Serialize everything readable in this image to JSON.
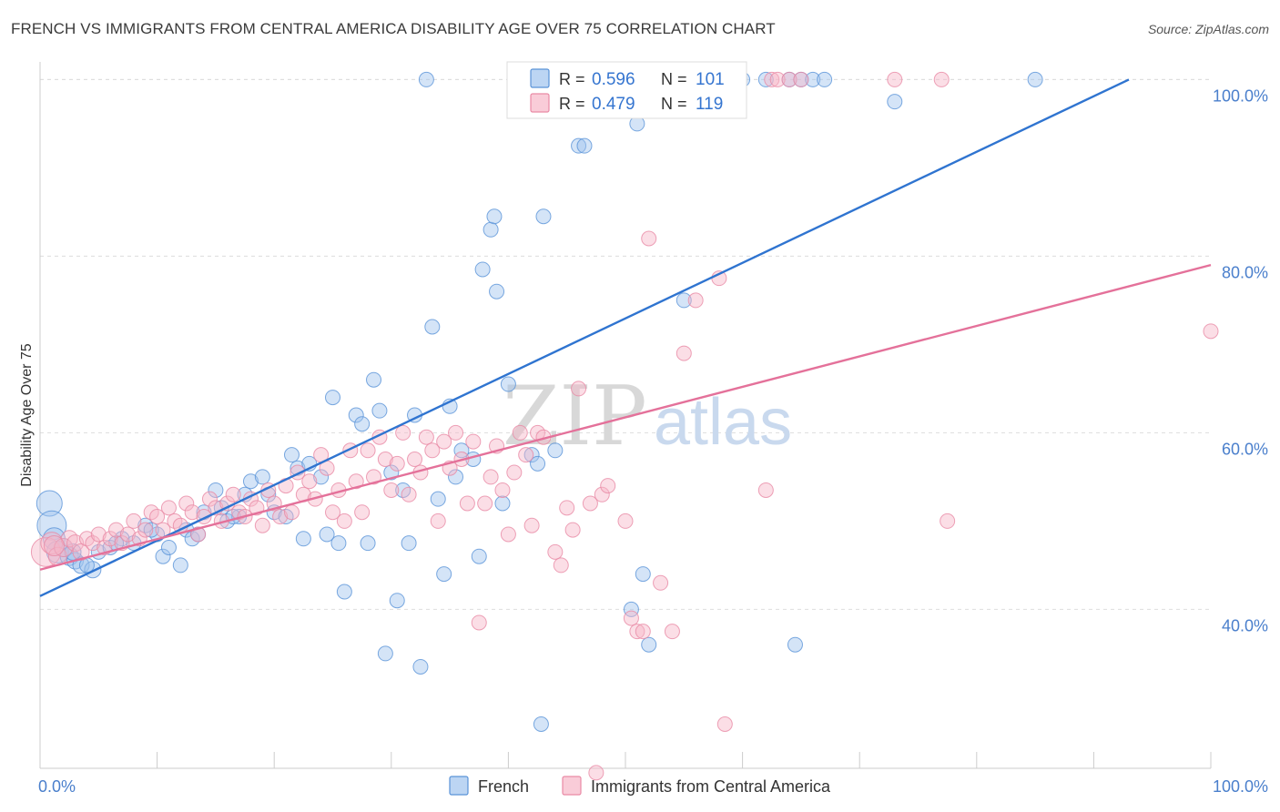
{
  "header": {
    "title": "FRENCH VS IMMIGRANTS FROM CENTRAL AMERICA DISABILITY AGE OVER 75 CORRELATION CHART",
    "source": "Source: ZipAtlas.com"
  },
  "watermark": {
    "zip": "ZIP",
    "atlas": "atlas"
  },
  "legend_box": {
    "rows": [
      {
        "r_label": "R = ",
        "r_value": "0.596",
        "n_label": "N = ",
        "n_value": "101",
        "color": "#9fc3ee"
      },
      {
        "r_label": "R = ",
        "r_value": "0.479",
        "n_label": "N = ",
        "n_value": "119",
        "color": "#f7b6c8"
      }
    ]
  },
  "chart_data": {
    "type": "scatter",
    "title": "FRENCH VS IMMIGRANTS FROM CENTRAL AMERICA DISABILITY AGE OVER 75 CORRELATION CHART",
    "xlabel": "",
    "ylabel": "Disability Age Over 75",
    "xlim": [
      0,
      100
    ],
    "ylim": [
      22,
      102
    ],
    "x_tick_labels": [
      {
        "value": 0,
        "label": "0.0%"
      },
      {
        "value": 100,
        "label": "100.0%"
      }
    ],
    "y_tick_labels": [
      {
        "value": 40,
        "label": "40.0%"
      },
      {
        "value": 60,
        "label": "60.0%"
      },
      {
        "value": 80,
        "label": "80.0%"
      },
      {
        "value": 100,
        "label": "100.0%"
      }
    ],
    "grid": true,
    "legend_position": "bottom",
    "series": [
      {
        "name": "French",
        "color": "#9fc3ee",
        "stroke": "#5a93d8",
        "trend_color": "#2f74d0",
        "trend": {
          "x": [
            0,
            93
          ],
          "y": [
            41.5,
            100
          ]
        },
        "points": [
          [
            0.8,
            52,
            14
          ],
          [
            1.0,
            49.5,
            16
          ],
          [
            1.2,
            48,
            12
          ],
          [
            1.5,
            46.5,
            12
          ],
          [
            2.0,
            47,
            10
          ],
          [
            2.5,
            46,
            10
          ],
          [
            3,
            45.5,
            9
          ],
          [
            3.5,
            45,
            9
          ],
          [
            4.5,
            44.5,
            9
          ],
          [
            5,
            46.5,
            8
          ],
          [
            6,
            47,
            8
          ],
          [
            7,
            48,
            8
          ],
          [
            8,
            47.5,
            8
          ],
          [
            9,
            49.5,
            8
          ],
          [
            10,
            48.5,
            8
          ],
          [
            10.5,
            46,
            8
          ],
          [
            12,
            45,
            8
          ],
          [
            12.5,
            49,
            8
          ],
          [
            13,
            48,
            8
          ],
          [
            14,
            51,
            8
          ],
          [
            15,
            53.5,
            8
          ],
          [
            15.5,
            51.5,
            8
          ],
          [
            16,
            50,
            8
          ],
          [
            17,
            50.5,
            8
          ],
          [
            17.5,
            53,
            8
          ],
          [
            18,
            54.5,
            8
          ],
          [
            19,
            55,
            8
          ],
          [
            19.5,
            53,
            8
          ],
          [
            20,
            51,
            8
          ],
          [
            21,
            50.5,
            8
          ],
          [
            21.5,
            57.5,
            8
          ],
          [
            22,
            56,
            8
          ],
          [
            22.5,
            48,
            8
          ],
          [
            23,
            56.5,
            8
          ],
          [
            24,
            55,
            8
          ],
          [
            24.5,
            48.5,
            8
          ],
          [
            25,
            64,
            8
          ],
          [
            25.5,
            47.5,
            8
          ],
          [
            26,
            42,
            8
          ],
          [
            27,
            62,
            8
          ],
          [
            27.5,
            61,
            8
          ],
          [
            28,
            47.5,
            8
          ],
          [
            28.5,
            66,
            8
          ],
          [
            29,
            62.5,
            8
          ],
          [
            29.5,
            35,
            8
          ],
          [
            30,
            55.5,
            8
          ],
          [
            30.5,
            41,
            8
          ],
          [
            31,
            53.5,
            8
          ],
          [
            31.5,
            47.5,
            8
          ],
          [
            32,
            62,
            8
          ],
          [
            32.5,
            33.5,
            8
          ],
          [
            33,
            100,
            8
          ],
          [
            33.5,
            72,
            8
          ],
          [
            34,
            52.5,
            8
          ],
          [
            34.5,
            44,
            8
          ],
          [
            35,
            63,
            8
          ],
          [
            35.5,
            55,
            8
          ],
          [
            36,
            58,
            8
          ],
          [
            37,
            57,
            8
          ],
          [
            37.5,
            46,
            8
          ],
          [
            37.8,
            78.5,
            8
          ],
          [
            38.5,
            83,
            8
          ],
          [
            38.8,
            84.5,
            8
          ],
          [
            39,
            76,
            8
          ],
          [
            39.5,
            52,
            8
          ],
          [
            40,
            65.5,
            8
          ],
          [
            41,
            100,
            8
          ],
          [
            42,
            57.5,
            8
          ],
          [
            42.5,
            56.5,
            8
          ],
          [
            42.8,
            27,
            8
          ],
          [
            43,
            84.5,
            8
          ],
          [
            44,
            58,
            8
          ],
          [
            46,
            92.5,
            8
          ],
          [
            46.5,
            92.5,
            8
          ],
          [
            48,
            100,
            8
          ],
          [
            50,
            100,
            8
          ],
          [
            51,
            95,
            8
          ],
          [
            50.5,
            40,
            8
          ],
          [
            51.5,
            44,
            8
          ],
          [
            52,
            36,
            8
          ],
          [
            53,
            100,
            8
          ],
          [
            55,
            75,
            8
          ],
          [
            57,
            100,
            8
          ],
          [
            58,
            100,
            8
          ],
          [
            60,
            100,
            8
          ],
          [
            62,
            100,
            8
          ],
          [
            64,
            100,
            8
          ],
          [
            64.5,
            36,
            8
          ],
          [
            65,
            100,
            8
          ],
          [
            66,
            100,
            8
          ],
          [
            67,
            100,
            8
          ],
          [
            73,
            97.5,
            8
          ],
          [
            85,
            100,
            8
          ],
          [
            11,
            47,
            8
          ],
          [
            13.5,
            48.5,
            8
          ],
          [
            16.5,
            50.5,
            8
          ],
          [
            6.5,
            47.5,
            8
          ],
          [
            4,
            45,
            8
          ],
          [
            2.8,
            46.5,
            9
          ],
          [
            9.5,
            49,
            8
          ]
        ]
      },
      {
        "name": "Immigrants from Central America",
        "color": "#f7b6c8",
        "stroke": "#e98aa5",
        "trend_color": "#e4719a",
        "trend": {
          "x": [
            0,
            100
          ],
          "y": [
            44.5,
            79
          ]
        },
        "points": [
          [
            0.5,
            46.5,
            16
          ],
          [
            1.0,
            47.5,
            12
          ],
          [
            1.5,
            46,
            10
          ],
          [
            2,
            47,
            10
          ],
          [
            2.5,
            48,
            9
          ],
          [
            3,
            47.5,
            9
          ],
          [
            3.5,
            46.5,
            9
          ],
          [
            4,
            48,
            8
          ],
          [
            4.5,
            47.5,
            8
          ],
          [
            5,
            48.5,
            8
          ],
          [
            5.5,
            47,
            8
          ],
          [
            6,
            48,
            8
          ],
          [
            6.5,
            49,
            8
          ],
          [
            7,
            47.5,
            8
          ],
          [
            7.5,
            48.5,
            8
          ],
          [
            8,
            50,
            8
          ],
          [
            8.5,
            48,
            8
          ],
          [
            9,
            49,
            8
          ],
          [
            9.5,
            51,
            8
          ],
          [
            10,
            50.5,
            8
          ],
          [
            10.5,
            49,
            8
          ],
          [
            11,
            51.5,
            8
          ],
          [
            11.5,
            50,
            8
          ],
          [
            12,
            49.5,
            8
          ],
          [
            12.5,
            52,
            8
          ],
          [
            13,
            51,
            8
          ],
          [
            13.5,
            48.5,
            8
          ],
          [
            14,
            50.5,
            8
          ],
          [
            14.5,
            52.5,
            8
          ],
          [
            15,
            51.5,
            8
          ],
          [
            15.5,
            50,
            8
          ],
          [
            16,
            52,
            8
          ],
          [
            16.5,
            53,
            8
          ],
          [
            17,
            51,
            8
          ],
          [
            17.5,
            50.5,
            8
          ],
          [
            18,
            52.5,
            8
          ],
          [
            18.5,
            51.5,
            8
          ],
          [
            19,
            49.5,
            8
          ],
          [
            19.5,
            53.5,
            8
          ],
          [
            20,
            52,
            8
          ],
          [
            20.5,
            50.5,
            8
          ],
          [
            21,
            54,
            8
          ],
          [
            21.5,
            51,
            8
          ],
          [
            22,
            55.5,
            8
          ],
          [
            22.5,
            53,
            8
          ],
          [
            23,
            54.5,
            8
          ],
          [
            23.5,
            52.5,
            8
          ],
          [
            24,
            57.5,
            8
          ],
          [
            24.5,
            56,
            8
          ],
          [
            25,
            51,
            8
          ],
          [
            25.5,
            53.5,
            8
          ],
          [
            26,
            50,
            8
          ],
          [
            26.5,
            58,
            8
          ],
          [
            27,
            54.5,
            8
          ],
          [
            27.5,
            51,
            8
          ],
          [
            28,
            58,
            8
          ],
          [
            28.5,
            55,
            8
          ],
          [
            29,
            59.5,
            8
          ],
          [
            29.5,
            57,
            8
          ],
          [
            30,
            53.5,
            8
          ],
          [
            30.5,
            56.5,
            8
          ],
          [
            31,
            60,
            8
          ],
          [
            31.5,
            53,
            8
          ],
          [
            32,
            57,
            8
          ],
          [
            32.5,
            55.5,
            8
          ],
          [
            33,
            59.5,
            8
          ],
          [
            33.5,
            58,
            8
          ],
          [
            34,
            50,
            8
          ],
          [
            34.5,
            59,
            8
          ],
          [
            35,
            56,
            8
          ],
          [
            35.5,
            60,
            8
          ],
          [
            36,
            57,
            8
          ],
          [
            36.5,
            52,
            8
          ],
          [
            37,
            59,
            8
          ],
          [
            37.5,
            38.5,
            8
          ],
          [
            38,
            52,
            8
          ],
          [
            38.5,
            55,
            8
          ],
          [
            39,
            58.5,
            8
          ],
          [
            39.5,
            53.5,
            8
          ],
          [
            40,
            48.5,
            8
          ],
          [
            40.5,
            55.5,
            8
          ],
          [
            41,
            60,
            8
          ],
          [
            41.5,
            57.5,
            8
          ],
          [
            42,
            49.5,
            8
          ],
          [
            42.5,
            60,
            8
          ],
          [
            43,
            59.5,
            8
          ],
          [
            44,
            46.5,
            8
          ],
          [
            44.5,
            45,
            8
          ],
          [
            45,
            51.5,
            8
          ],
          [
            45.5,
            49,
            8
          ],
          [
            46,
            65,
            8
          ],
          [
            47,
            52,
            8
          ],
          [
            47.5,
            21.5,
            8
          ],
          [
            48,
            53,
            8
          ],
          [
            48.5,
            54,
            8
          ],
          [
            50,
            50,
            8
          ],
          [
            50.5,
            39,
            8
          ],
          [
            51,
            37.5,
            8
          ],
          [
            51.5,
            37.5,
            8
          ],
          [
            52,
            82,
            8
          ],
          [
            53,
            43,
            8
          ],
          [
            54,
            37.5,
            8
          ],
          [
            55,
            69,
            8
          ],
          [
            56,
            75,
            8
          ],
          [
            58,
            77.5,
            8
          ],
          [
            58.5,
            27,
            8
          ],
          [
            59,
            100,
            8
          ],
          [
            62,
            53.5,
            8
          ],
          [
            62.5,
            100,
            8
          ],
          [
            63,
            100,
            8
          ],
          [
            64,
            100,
            8
          ],
          [
            65,
            100,
            8
          ],
          [
            73,
            100,
            8
          ],
          [
            77,
            100,
            8
          ],
          [
            77.5,
            50,
            8
          ],
          [
            100,
            71.5,
            8
          ],
          [
            1.2,
            47.2,
            11
          ]
        ]
      }
    ]
  }
}
